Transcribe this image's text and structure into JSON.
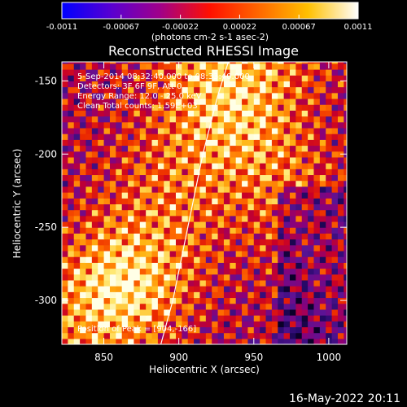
{
  "chart_data": {
    "type": "heatmap",
    "title": "Reconstructed RHESSI Image",
    "xlabel": "Heliocentric X (arcsec)",
    "ylabel": "Heliocentric Y (arcsec)",
    "xlim": [
      822,
      1012
    ],
    "ylim": [
      -330,
      -137
    ],
    "x_ticks": [
      850,
      900,
      950,
      1000
    ],
    "y_ticks": [
      -150,
      -200,
      -250,
      -300
    ],
    "colorbar": {
      "range": [
        -0.0011,
        0.0011
      ],
      "ticks": [
        "-0.0011",
        "-0.00067",
        "-0.00022",
        "0.00022",
        "0.00067",
        "0.0011"
      ],
      "units": "(photons cm-2 s-1 asec-2)",
      "colors": [
        "#0000ff",
        "#6a00c8",
        "#b0007a",
        "#ff2000",
        "#ff8000",
        "#ffff80",
        "#ffffff"
      ]
    },
    "annotations": [
      "5-Sep-2014 08:32:40.000 to 08:33:40.000",
      "Detectors: 3F 6F 9F, Att 0",
      "Energy Range: 12.0 - 25.0 keV",
      "Clean     Total counts: 1.59E+03"
    ],
    "peak_label": "Position of Peak = [904,-166]",
    "limb": [
      [
        888,
        -330
      ],
      [
        896,
        -300
      ],
      [
        906,
        -250
      ],
      [
        916,
        -200
      ],
      [
        926,
        -160
      ],
      [
        933,
        -137
      ]
    ],
    "image_grid": {
      "pixel_size_arcsec": 4,
      "x_start": 822,
      "y_start": -330,
      "nx": 48,
      "ny": 49
    }
  },
  "footer": {
    "date": "16-May-2022 20:11"
  }
}
